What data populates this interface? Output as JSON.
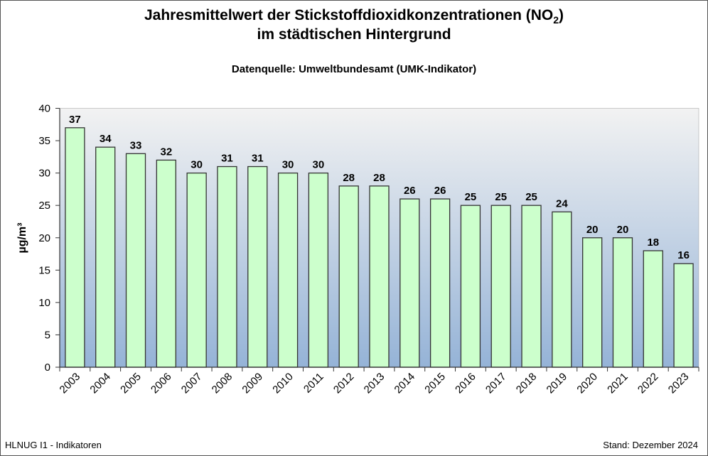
{
  "chart_data": {
    "type": "bar",
    "title_line1": "Jahresmittelwert der Stickstoffdioxidkonzentrationen (NO",
    "title_sub": "2",
    "title_close": ")",
    "title_line2": "im städtischen Hintergrund",
    "subtitle": "Datenquelle: Umweltbundesamt (UMK-Indikator)",
    "ylabel": "µg/m³",
    "xlabel": "",
    "ylim": [
      0,
      40
    ],
    "yticks": [
      0,
      5,
      10,
      15,
      20,
      25,
      30,
      35,
      40
    ],
    "categories": [
      "2003",
      "2004",
      "2005",
      "2006",
      "2007",
      "2008",
      "2009",
      "2010",
      "2011",
      "2012",
      "2013",
      "2014",
      "2015",
      "2016",
      "2017",
      "2018",
      "2019",
      "2020",
      "2021",
      "2022",
      "2023"
    ],
    "values": [
      37,
      34,
      33,
      32,
      30,
      31,
      31,
      30,
      30,
      28,
      28,
      26,
      26,
      25,
      25,
      25,
      24,
      20,
      20,
      18,
      16
    ],
    "bar_color": "#ccffcc",
    "background_gradient": [
      "#f2f2f2",
      "#95b3d7"
    ],
    "grid": false,
    "data_labels": true
  },
  "footer": {
    "left": "HLNUG I1 - Indikatoren",
    "right": "Stand: Dezember 2024"
  }
}
